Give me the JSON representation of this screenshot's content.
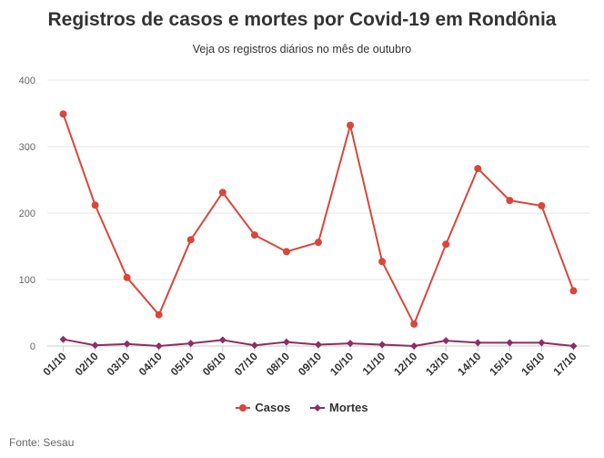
{
  "title": "Registros de casos e mortes por Covid-19 em Rondônia",
  "subtitle": "Veja os registros diários no mês de outubro",
  "source": "Fonte: Sesau",
  "colors": {
    "casos": "#d9473b",
    "mortes": "#8c2f63",
    "grid": "#e6e6e6",
    "axis": "#cccccc",
    "text": "#333333"
  },
  "chart_data": {
    "type": "line",
    "title": "Registros de casos e mortes por Covid-19 em Rondônia",
    "subtitle": "Veja os registros diários no mês de outubro",
    "xlabel": "",
    "ylabel": "",
    "ylim": [
      0,
      400
    ],
    "yticks": [
      0,
      100,
      200,
      300,
      400
    ],
    "grid": true,
    "legend_position": "bottom",
    "categories": [
      "01/10",
      "02/10",
      "03/10",
      "04/10",
      "05/10",
      "06/10",
      "07/10",
      "08/10",
      "09/10",
      "10/10",
      "11/10",
      "12/10",
      "13/10",
      "14/10",
      "15/10",
      "16/10",
      "17/10"
    ],
    "series": [
      {
        "name": "Casos",
        "marker": "circle",
        "color": "#d9473b",
        "values": [
          349,
          212,
          103,
          47,
          160,
          231,
          167,
          142,
          156,
          332,
          127,
          33,
          153,
          267,
          219,
          211,
          83
        ]
      },
      {
        "name": "Mortes",
        "marker": "diamond",
        "color": "#8c2f63",
        "values": [
          10,
          1,
          3,
          0,
          4,
          9,
          1,
          6,
          2,
          4,
          2,
          0,
          8,
          5,
          5,
          5,
          0
        ]
      }
    ]
  }
}
